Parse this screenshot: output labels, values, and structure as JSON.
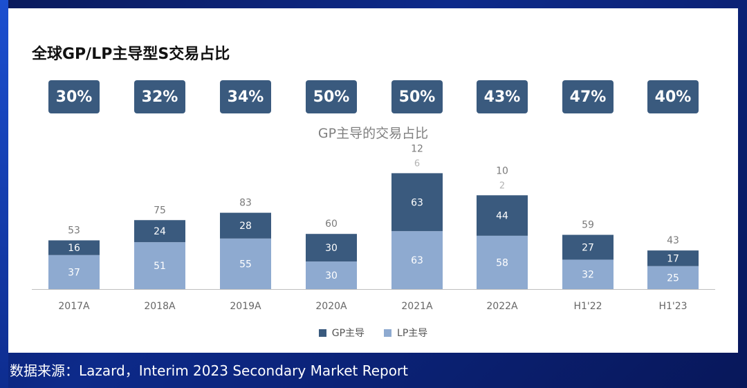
{
  "title": "全球GP/LP主导型S交易占比",
  "percent_boxes": [
    "30%",
    "32%",
    "34%",
    "50%",
    "50%",
    "43%",
    "47%",
    "40%"
  ],
  "source": "数据来源：Lazard，Interim 2023 Secondary Market Report",
  "colors": {
    "gp": "#3a5a7e",
    "lp": "#8eaad0",
    "pct_box": "#3a5a7e"
  },
  "chart_data": {
    "type": "bar",
    "stacked": true,
    "title": "GP主导的交易占比",
    "categories": [
      "2017A",
      "2018A",
      "2019A",
      "2020A",
      "2021A",
      "2022A",
      "H1'22",
      "H1'23"
    ],
    "series": [
      {
        "name": "LP主导",
        "values": [
          37,
          51,
          55,
          30,
          63,
          58,
          32,
          25
        ]
      },
      {
        "name": "GP主导",
        "values": [
          16,
          24,
          28,
          30,
          63,
          44,
          27,
          17
        ]
      }
    ],
    "totals": [
      53,
      75,
      83,
      60,
      126,
      102,
      59,
      43
    ],
    "total_labels": [
      [
        "53"
      ],
      [
        "75"
      ],
      [
        "83"
      ],
      [
        "60"
      ],
      [
        "12",
        "6"
      ],
      [
        "10",
        "2"
      ],
      [
        "59"
      ],
      [
        "43"
      ]
    ],
    "gp_share_labels": [
      "30%",
      "32%",
      "34%",
      "50%",
      "50%",
      "43%",
      "47%",
      "40%"
    ],
    "legend": [
      "GP主导",
      "LP主导"
    ],
    "ylim": [
      0,
      126
    ]
  }
}
